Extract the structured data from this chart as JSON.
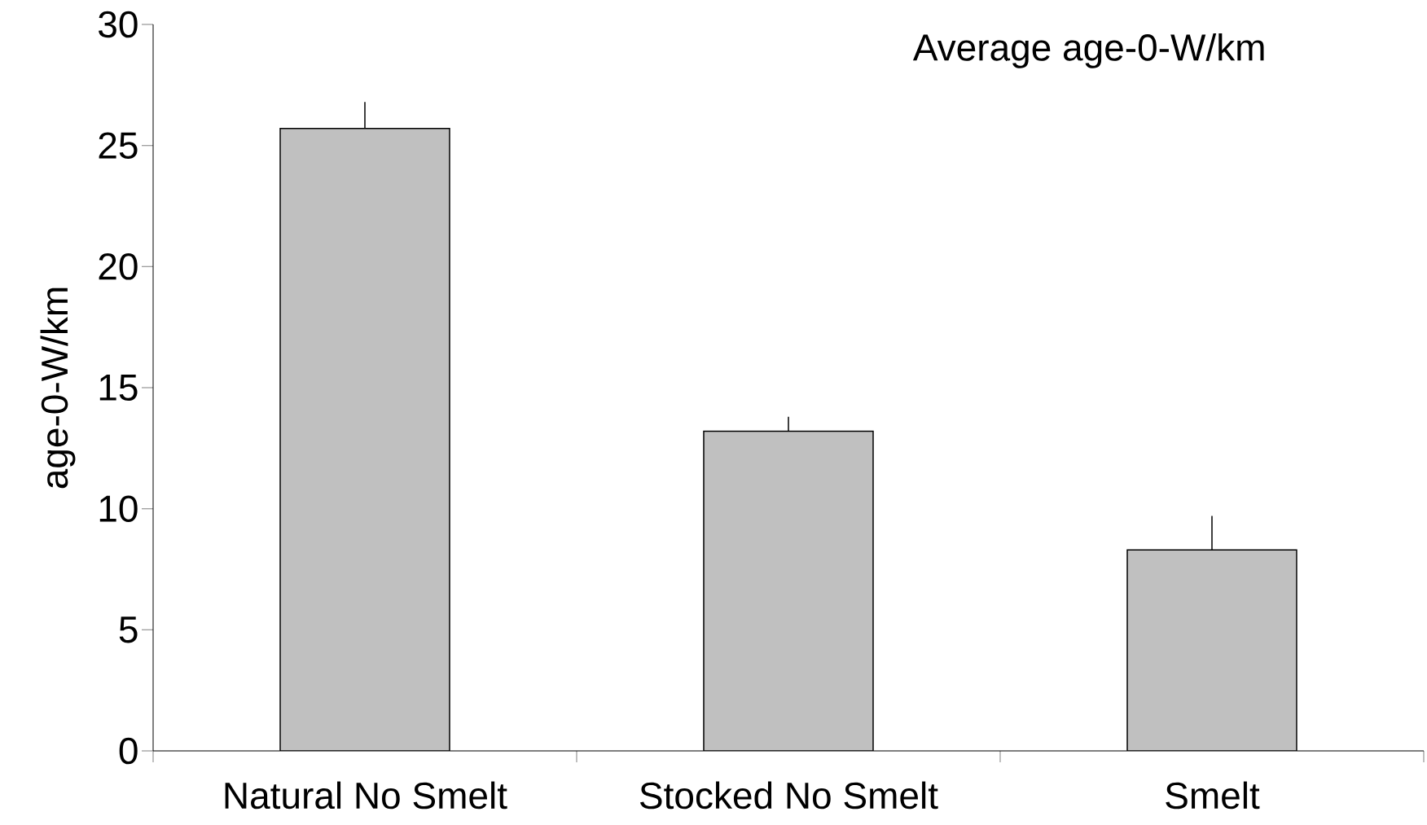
{
  "chart_data": {
    "type": "bar",
    "title": "Average age-0-W/km",
    "ylabel": "age-0-W/km",
    "categories": [
      "Natural No Smelt",
      "Stocked No Smelt",
      "Smelt"
    ],
    "values": [
      25.7,
      13.2,
      8.3
    ],
    "color": "#c0c0c0",
    "errors": [
      [
        25.7,
        26.8
      ],
      [
        13.2,
        13.8
      ],
      [
        8.3,
        9.7
      ]
    ],
    "ylim": [
      0,
      30
    ],
    "yticks": [
      0,
      5,
      10,
      15,
      20,
      25,
      30
    ],
    "grid": false
  }
}
